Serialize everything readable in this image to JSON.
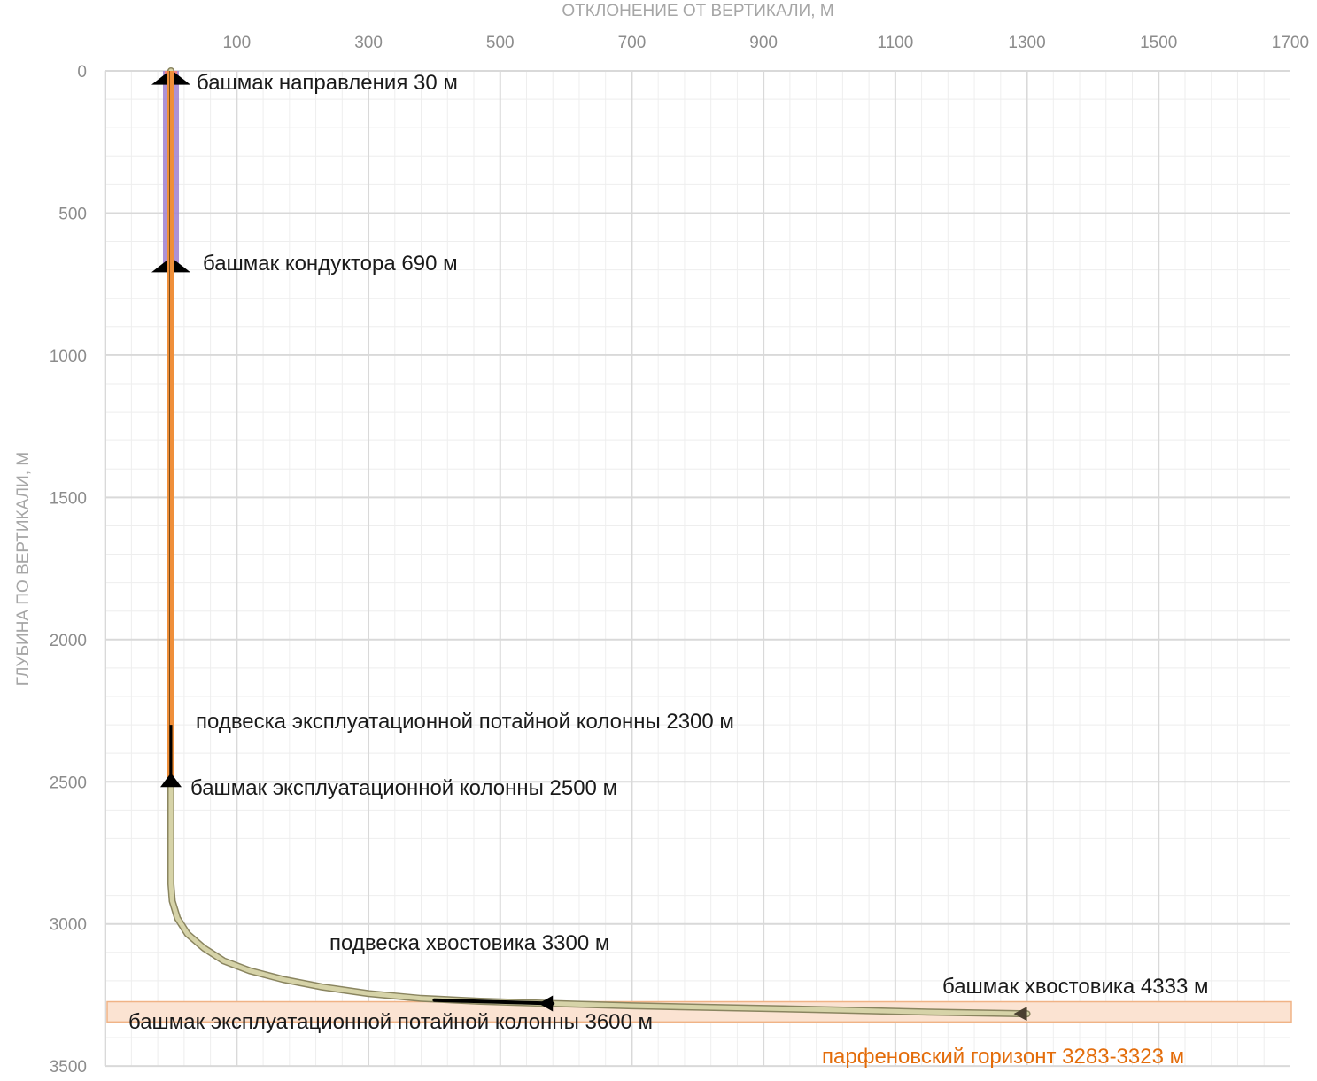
{
  "chart_data": {
    "type": "line",
    "title": "",
    "xlabel": "ОТКЛОНЕНИЕ ОТ ВЕРТИКАЛИ, М",
    "ylabel": "ГЛУБИНА ПО ВЕРТИКАЛИ, М",
    "xlim": [
      0,
      1700
    ],
    "ylim": [
      0,
      3500
    ],
    "y_inverted": true,
    "x_axis_position": "top",
    "grid": true,
    "x_ticks": [
      "100",
      "300",
      "500",
      "700",
      "900",
      "1100",
      "1300",
      "1500",
      "1700"
    ],
    "y_ticks": [
      "0",
      "500",
      "1000",
      "1500",
      "2000",
      "2500",
      "3000",
      "3500"
    ],
    "well_path": {
      "x": [
        0,
        0,
        0,
        0,
        0,
        0,
        2,
        10,
        25,
        50,
        80,
        120,
        170,
        230,
        300,
        380,
        470,
        580,
        700,
        850,
        1000,
        1150,
        1300
      ],
      "y": [
        0,
        690,
        1500,
        2300,
        2500,
        2860,
        2920,
        2980,
        3035,
        3085,
        3130,
        3165,
        3195,
        3222,
        3245,
        3262,
        3272,
        3280,
        3288,
        3295,
        3302,
        3310,
        3316
      ]
    },
    "colors": {
      "well_path": "#d6d3a8",
      "well_path_edge": "#8a8560",
      "conductor": "#9e7fd0",
      "direction": "#f08080",
      "production_string": "#ef8f3a",
      "liner_hanger_segment": "#000000",
      "formation_band": "#fbe3d2",
      "formation_band_edge": "#f0b386",
      "annotation_text": "#1a1a1a",
      "formation_text": "#e36c0a"
    },
    "casing_segments": [
      {
        "from": 0,
        "to": 30,
        "color_key": "direction"
      },
      {
        "from": 0,
        "to": 690,
        "color_key": "conductor"
      },
      {
        "from": 0,
        "to": 2500,
        "color_key": "production_string"
      }
    ],
    "formation": {
      "label": "парфеновский горизонт 3283-3323 м",
      "top": 3283,
      "bottom": 3323
    },
    "annotations": [
      {
        "text": "башмак направления 30 м",
        "x": 0,
        "y": 30
      },
      {
        "text": "башмак кондуктора 690 м",
        "x": 0,
        "y": 690
      },
      {
        "text": "подвеска эксплуатационной потайной колонны 2300 м",
        "x": 0,
        "y": 2300
      },
      {
        "text": "башмак эксплуатационной колонны 2500 м",
        "x": 0,
        "y": 2500
      },
      {
        "text": "подвеска хвостовика 3300 м",
        "x": 400,
        "y": 3260
      },
      {
        "text": "башмак эксплуатационной потайной колонны 3600 м",
        "x": 580,
        "y": 3280
      },
      {
        "text": "башмак хвостовика 4333 м",
        "x": 1300,
        "y": 3316
      }
    ]
  }
}
